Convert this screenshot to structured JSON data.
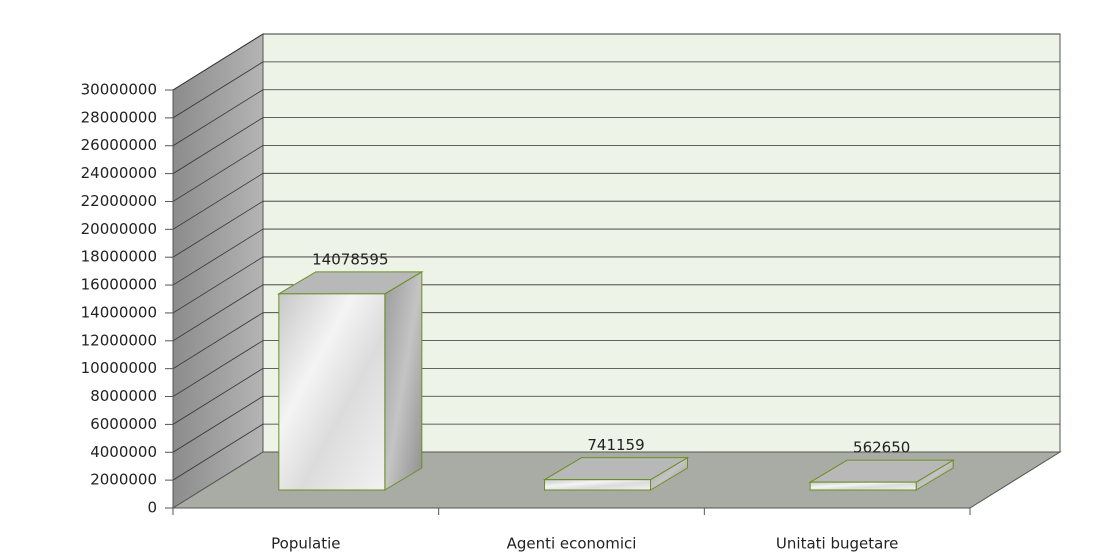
{
  "chart_data": {
    "type": "bar3d",
    "categories": [
      "Populatie",
      "Agenti economici",
      "Unitati bugetare"
    ],
    "values": [
      14078595,
      741159,
      562650
    ],
    "color": "#d9d9d9",
    "ylim": [
      0,
      30000000
    ],
    "yticks": [
      0,
      2000000,
      4000000,
      6000000,
      8000000,
      10000000,
      12000000,
      14000000,
      16000000,
      18000000,
      20000000,
      22000000,
      24000000,
      26000000,
      28000000,
      30000000
    ],
    "grid": true
  }
}
